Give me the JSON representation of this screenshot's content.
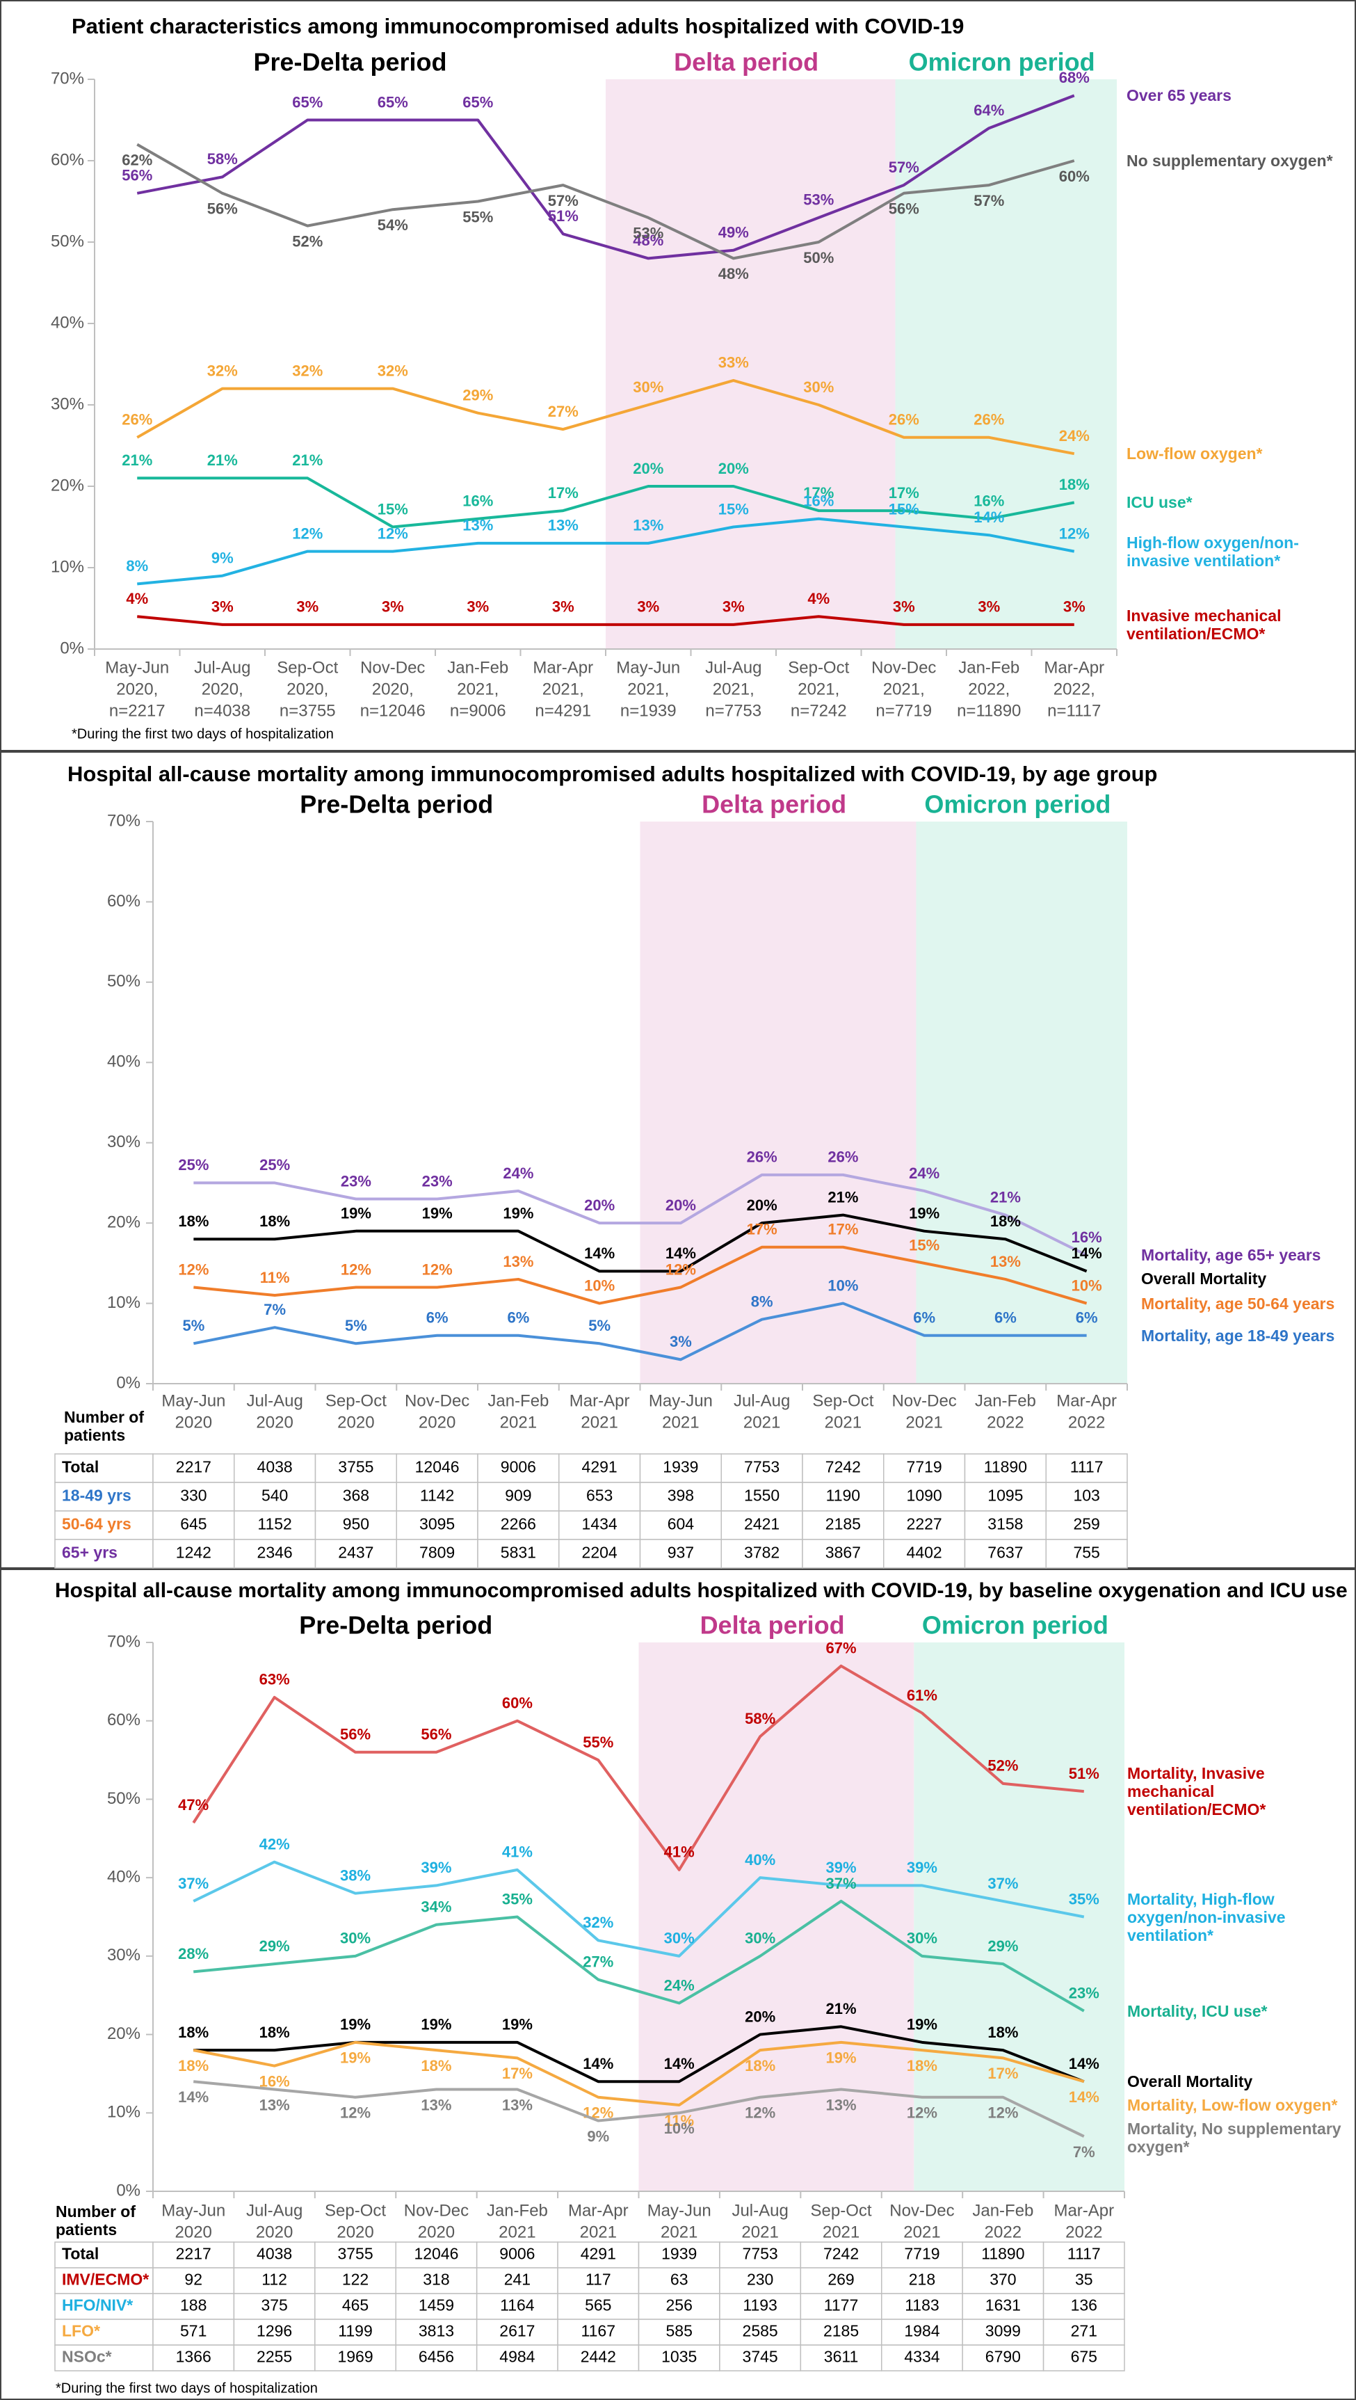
{
  "chart_data": [
    {
      "type": "line",
      "title": "Patient characteristics among immunocompromised adults hospitalized with COVID-19",
      "periods": [
        {
          "label": "Pre-Delta period",
          "color": "#000000"
        },
        {
          "label": "Delta period",
          "color": "#c0398a",
          "shade": "#f7e6f1"
        },
        {
          "label": "Omicron period",
          "color": "#19b394",
          "shade": "#e0f6ef"
        }
      ],
      "categories": [
        [
          "May-Jun",
          "2020,",
          "n=2217"
        ],
        [
          "Jul-Aug",
          "2020,",
          "n=4038"
        ],
        [
          "Sep-Oct",
          "2020,",
          "n=3755"
        ],
        [
          "Nov-Dec",
          "2020,",
          "n=12046"
        ],
        [
          "Jan-Feb",
          "2021,",
          "n=9006"
        ],
        [
          "Mar-Apr",
          "2021,",
          "n=4291"
        ],
        [
          "May-Jun",
          "2021,",
          "n=1939"
        ],
        [
          "Jul-Aug",
          "2021,",
          "n=7753"
        ],
        [
          "Sep-Oct",
          "2021,",
          "n=7242"
        ],
        [
          "Nov-Dec",
          "2021,",
          "n=7719"
        ],
        [
          "Jan-Feb",
          "2022,",
          "n=11890"
        ],
        [
          "Mar-Apr",
          "2022,",
          "n=1117"
        ]
      ],
      "ylim": [
        0,
        70
      ],
      "yticks": [
        {
          "value": 0,
          "label": "0%"
        },
        {
          "value": 10,
          "label": "10%"
        },
        {
          "value": 20,
          "label": "20%"
        },
        {
          "value": 30,
          "label": "30%"
        },
        {
          "value": 40,
          "label": "40%"
        },
        {
          "value": 50,
          "label": "50%"
        },
        {
          "value": 60,
          "label": "60%"
        },
        {
          "value": 70,
          "label": "70%"
        }
      ],
      "grid": false,
      "series": [
        {
          "name": "Over 65 years",
          "color": "#7030a0",
          "values": [
            56,
            58,
            65,
            65,
            65,
            51,
            48,
            49,
            53,
            57,
            64,
            68
          ],
          "value_labels": [
            "56%",
            "58%",
            "65%",
            "65%",
            "65%",
            "51%",
            "48%",
            "49%",
            "53%",
            "57%",
            "64%",
            "68%"
          ]
        },
        {
          "name": "No supplementary oxygen*",
          "color": "#7f7f7f",
          "label_color": "#595959",
          "values": [
            62,
            56,
            52,
            54,
            55,
            57,
            53,
            48,
            50,
            56,
            57,
            60
          ],
          "value_labels": [
            "62%",
            "56%",
            "52%",
            "54%",
            "55%",
            "57%",
            "53%",
            "48%",
            "50%",
            "56%",
            "57%",
            "60%"
          ]
        },
        {
          "name": "Low-flow oxygen*",
          "color": "#f4a636",
          "values": [
            26,
            32,
            32,
            32,
            29,
            27,
            30,
            33,
            30,
            26,
            26,
            24
          ],
          "value_labels": [
            "26%",
            "32%",
            "32%",
            "32%",
            "29%",
            "27%",
            "30%",
            "33%",
            "30%",
            "26%",
            "26%",
            "24%"
          ]
        },
        {
          "name": "ICU use*",
          "color": "#18b89a",
          "values": [
            21,
            21,
            21,
            15,
            16,
            17,
            20,
            20,
            17,
            17,
            16,
            18
          ],
          "value_labels": [
            "21%",
            "21%",
            "21%",
            "15%",
            "16%",
            "17%",
            "20%",
            "20%",
            "17%",
            "17%",
            "16%",
            "18%"
          ]
        },
        {
          "name": "High-flow oxygen/non-invasive ventilation*",
          "color": "#22b2e2",
          "values": [
            8,
            9,
            12,
            12,
            13,
            13,
            13,
            15,
            16,
            15,
            14,
            12
          ],
          "value_labels": [
            "8%",
            "9%",
            "12%",
            "12%",
            "13%",
            "13%",
            "13%",
            "15%",
            "16%",
            "15%",
            "14%",
            "12%"
          ]
        },
        {
          "name": "Invasive mechanical ventilation/ECMO*",
          "color": "#c00000",
          "values": [
            4,
            3,
            3,
            3,
            3,
            3,
            3,
            3,
            4,
            3,
            3,
            3
          ],
          "value_labels": [
            "4%",
            "3%",
            "3%",
            "3%",
            "3%",
            "3%",
            "3%",
            "3%",
            "4%",
            "3%",
            "3%",
            "3%"
          ]
        }
      ],
      "footnote": "*During the first two days of hospitalization"
    },
    {
      "type": "line",
      "title": "Hospital all-cause mortality among immunocompromised adults hospitalized with COVID-19, by age group",
      "periods": [
        {
          "label": "Pre-Delta period",
          "color": "#000000"
        },
        {
          "label": "Delta period",
          "color": "#c0398a",
          "shade": "#f7e6f1"
        },
        {
          "label": "Omicron period",
          "color": "#19b394",
          "shade": "#e0f6ef"
        }
      ],
      "categories": [
        [
          "May-Jun",
          "2020"
        ],
        [
          "Jul-Aug",
          "2020"
        ],
        [
          "Sep-Oct",
          "2020"
        ],
        [
          "Nov-Dec",
          "2020"
        ],
        [
          "Jan-Feb",
          "2021"
        ],
        [
          "Mar-Apr",
          "2021"
        ],
        [
          "May-Jun",
          "2021"
        ],
        [
          "Jul-Aug",
          "2021"
        ],
        [
          "Sep-Oct",
          "2021"
        ],
        [
          "Nov-Dec",
          "2021"
        ],
        [
          "Jan-Feb",
          "2022"
        ],
        [
          "Mar-Apr",
          "2022"
        ]
      ],
      "ylim": [
        0,
        70
      ],
      "yticks": [
        {
          "value": 0,
          "label": "0%"
        },
        {
          "value": 10,
          "label": "10%"
        },
        {
          "value": 20,
          "label": "20%"
        },
        {
          "value": 30,
          "label": "30%"
        },
        {
          "value": 40,
          "label": "40%"
        },
        {
          "value": 50,
          "label": "50%"
        },
        {
          "value": 60,
          "label": "60%"
        },
        {
          "value": 70,
          "label": "70%"
        }
      ],
      "grid": false,
      "series": [
        {
          "name": "Mortality, age 65+ years",
          "color": "#b4a7e0",
          "label_color": "#7030a0",
          "values": [
            25,
            25,
            23,
            23,
            24,
            20,
            20,
            26,
            26,
            24,
            21,
            16
          ],
          "value_labels": [
            "25%",
            "25%",
            "23%",
            "23%",
            "24%",
            "20%",
            "20%",
            "26%",
            "26%",
            "24%",
            "21%",
            "16%"
          ]
        },
        {
          "name": "Overall Mortality",
          "color": "#000000",
          "values": [
            18,
            18,
            19,
            19,
            19,
            14,
            14,
            20,
            21,
            19,
            18,
            14
          ],
          "value_labels": [
            "18%",
            "18%",
            "19%",
            "19%",
            "19%",
            "14%",
            "14%",
            "20%",
            "21%",
            "19%",
            "18%",
            "14%"
          ]
        },
        {
          "name": "Mortality, age 50-64 years",
          "color": "#f07d2a",
          "values": [
            12,
            11,
            12,
            12,
            13,
            10,
            12,
            17,
            17,
            15,
            13,
            10
          ],
          "value_labels": [
            "12%",
            "11%",
            "12%",
            "12%",
            "13%",
            "10%",
            "12%",
            "17%",
            "17%",
            "15%",
            "13%",
            "10%"
          ]
        },
        {
          "name": "Mortality, age 18-49 years",
          "color": "#4a90d9",
          "label_color": "#2e75c8",
          "values": [
            5,
            7,
            5,
            6,
            6,
            5,
            3,
            8,
            10,
            6,
            6,
            6
          ],
          "value_labels": [
            "5%",
            "7%",
            "5%",
            "6%",
            "6%",
            "5%",
            "3%",
            "8%",
            "10%",
            "6%",
            "6%",
            "6%"
          ]
        }
      ],
      "table": {
        "title": "Number of patients",
        "rows": [
          {
            "label": "Total",
            "color": "#000000",
            "values": [
              2217,
              4038,
              3755,
              12046,
              9006,
              4291,
              1939,
              7753,
              7242,
              7719,
              11890,
              1117
            ]
          },
          {
            "label": "18-49 yrs",
            "color": "#2e75c8",
            "values": [
              330,
              540,
              368,
              1142,
              909,
              653,
              398,
              1550,
              1190,
              1090,
              1095,
              103
            ]
          },
          {
            "label": "50-64 yrs",
            "color": "#f07d2a",
            "values": [
              645,
              1152,
              950,
              3095,
              2266,
              1434,
              604,
              2421,
              2185,
              2227,
              3158,
              259
            ]
          },
          {
            "label": "65+ yrs",
            "color": "#7030a0",
            "values": [
              1242,
              2346,
              2437,
              7809,
              5831,
              2204,
              937,
              3782,
              3867,
              4402,
              7637,
              755
            ]
          }
        ]
      }
    },
    {
      "type": "line",
      "title": "Hospital all-cause mortality among immunocompromised adults hospitalized with COVID-19, by baseline oxygenation and ICU use",
      "periods": [
        {
          "label": "Pre-Delta period",
          "color": "#000000"
        },
        {
          "label": "Delta period",
          "color": "#c0398a",
          "shade": "#f7e6f1"
        },
        {
          "label": "Omicron period",
          "color": "#19b394",
          "shade": "#e0f6ef"
        }
      ],
      "categories": [
        [
          "May-Jun",
          "2020"
        ],
        [
          "Jul-Aug",
          "2020"
        ],
        [
          "Sep-Oct",
          "2020"
        ],
        [
          "Nov-Dec",
          "2020"
        ],
        [
          "Jan-Feb",
          "2021"
        ],
        [
          "Mar-Apr",
          "2021"
        ],
        [
          "May-Jun",
          "2021"
        ],
        [
          "Jul-Aug",
          "2021"
        ],
        [
          "Sep-Oct",
          "2021"
        ],
        [
          "Nov-Dec",
          "2021"
        ],
        [
          "Jan-Feb",
          "2022"
        ],
        [
          "Mar-Apr",
          "2022"
        ]
      ],
      "ylim": [
        0,
        70
      ],
      "yticks": [
        {
          "value": 0,
          "label": "0%"
        },
        {
          "value": 10,
          "label": "10%"
        },
        {
          "value": 20,
          "label": "20%"
        },
        {
          "value": 30,
          "label": "30%"
        },
        {
          "value": 40,
          "label": "40%"
        },
        {
          "value": 50,
          "label": "50%"
        },
        {
          "value": 60,
          "label": "60%"
        },
        {
          "value": 70,
          "label": "70%"
        }
      ],
      "grid": false,
      "series": [
        {
          "name": "Mortality, Invasive mechanical ventilation/ECMO*",
          "color": "#e06060",
          "label_color": "#c00000",
          "values": [
            47,
            63,
            56,
            56,
            60,
            55,
            41,
            58,
            67,
            61,
            52,
            51
          ],
          "value_labels": [
            "47%",
            "63%",
            "56%",
            "56%",
            "60%",
            "55%",
            "41%",
            "58%",
            "67%",
            "61%",
            "52%",
            "51%"
          ]
        },
        {
          "name": "Mortality, High-flow oxygen/non-invasive ventilation*",
          "color": "#5bc8ea",
          "label_color": "#1eb0e0",
          "values": [
            37,
            42,
            38,
            39,
            41,
            32,
            30,
            40,
            39,
            39,
            37,
            35
          ],
          "value_labels": [
            "37%",
            "42%",
            "38%",
            "39%",
            "41%",
            "32%",
            "30%",
            "40%",
            "39%",
            "39%",
            "37%",
            "35%"
          ]
        },
        {
          "name": "Mortality, ICU use*",
          "color": "#4ac0a4",
          "label_color": "#18b090",
          "values": [
            28,
            29,
            30,
            34,
            35,
            27,
            24,
            30,
            37,
            30,
            29,
            23
          ],
          "value_labels": [
            "28%",
            "29%",
            "30%",
            "34%",
            "35%",
            "27%",
            "24%",
            "30%",
            "37%",
            "30%",
            "29%",
            "23%"
          ]
        },
        {
          "name": "Overall Mortality",
          "color": "#000000",
          "values": [
            18,
            18,
            19,
            19,
            19,
            14,
            14,
            20,
            21,
            19,
            18,
            14
          ],
          "value_labels": [
            "18%",
            "18%",
            "19%",
            "19%",
            "19%",
            "14%",
            "14%",
            "20%",
            "21%",
            "19%",
            "18%",
            "14%"
          ]
        },
        {
          "name": "Mortality, Low-flow oxygen*",
          "color": "#f5a940",
          "values": [
            18,
            16,
            19,
            18,
            17,
            12,
            11,
            18,
            19,
            18,
            17,
            14
          ],
          "value_labels": [
            "18%",
            "16%",
            "19%",
            "18%",
            "17%",
            "12%",
            "11%",
            "18%",
            "19%",
            "18%",
            "17%",
            "14%"
          ]
        },
        {
          "name": "Mortality, No supplementary oxygen*",
          "color": "#a6a6a6",
          "label_color": "#7f7f7f",
          "values": [
            14,
            13,
            12,
            13,
            13,
            9,
            10,
            12,
            13,
            12,
            12,
            7
          ],
          "value_labels": [
            "14%",
            "13%",
            "12%",
            "13%",
            "13%",
            "9%",
            "10%",
            "12%",
            "13%",
            "12%",
            "12%",
            "7%"
          ]
        }
      ],
      "table": {
        "title": "Number of patients",
        "rows": [
          {
            "label": "Total",
            "color": "#000000",
            "values": [
              2217,
              4038,
              3755,
              12046,
              9006,
              4291,
              1939,
              7753,
              7242,
              7719,
              11890,
              1117
            ]
          },
          {
            "label": "IMV/ECMO*",
            "color": "#c00000",
            "values": [
              92,
              112,
              122,
              318,
              241,
              117,
              63,
              230,
              269,
              218,
              370,
              35
            ]
          },
          {
            "label": "HFO/NIV*",
            "color": "#1eb0e0",
            "values": [
              188,
              375,
              465,
              1459,
              1164,
              565,
              256,
              1193,
              1177,
              1183,
              1631,
              136
            ]
          },
          {
            "label": "LFO*",
            "color": "#f5a940",
            "values": [
              571,
              1296,
              1199,
              3813,
              2617,
              1167,
              585,
              2585,
              2185,
              1984,
              3099,
              271
            ]
          },
          {
            "label": "NSOc*",
            "color": "#7f7f7f",
            "values": [
              1366,
              2255,
              1969,
              6456,
              4984,
              2442,
              1035,
              3745,
              3611,
              4334,
              6790,
              675
            ]
          }
        ]
      },
      "footnote": "*During the first two days of hospitalization"
    }
  ]
}
